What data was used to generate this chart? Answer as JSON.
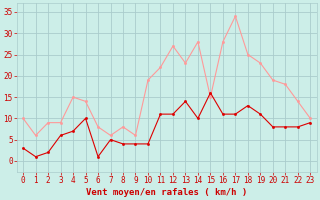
{
  "hours": [
    0,
    1,
    2,
    3,
    4,
    5,
    6,
    7,
    8,
    9,
    10,
    11,
    12,
    13,
    14,
    15,
    16,
    17,
    18,
    19,
    20,
    21,
    22,
    23
  ],
  "wind_avg": [
    3,
    1,
    2,
    6,
    7,
    10,
    1,
    5,
    4,
    4,
    4,
    11,
    11,
    14,
    10,
    16,
    11,
    11,
    13,
    11,
    8,
    8,
    8,
    9
  ],
  "wind_gust": [
    10,
    6,
    9,
    9,
    15,
    14,
    8,
    6,
    8,
    6,
    19,
    22,
    27,
    23,
    28,
    15,
    28,
    34,
    25,
    23,
    19,
    18,
    14,
    10
  ],
  "bg_color": "#cceee8",
  "grid_color": "#aacccc",
  "avg_color": "#dd0000",
  "gust_color": "#ff9999",
  "xlabel": "Vent moyen/en rafales ( km/h )",
  "xlabel_color": "#cc0000",
  "tick_color": "#cc0000",
  "ytick_labels": [
    "0",
    "5",
    "10",
    "15",
    "20",
    "25",
    "30",
    "35"
  ],
  "ytick_vals": [
    0,
    5,
    10,
    15,
    20,
    25,
    30,
    35
  ],
  "ylim": [
    -2.5,
    37
  ],
  "xlim": [
    -0.5,
    23.5
  ]
}
